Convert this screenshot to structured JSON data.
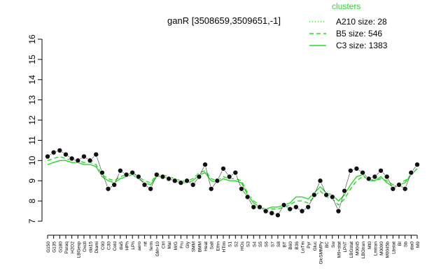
{
  "colors": {
    "series_line": "#22dd22",
    "points_fill": "#111111",
    "axis": "#000000",
    "legend_title": "#22dd22"
  },
  "chart_data": {
    "type": "line",
    "title": "ganR [3508659,3509651,-1]",
    "xlabel": "",
    "ylabel": "",
    "ylim": [
      7,
      16
    ],
    "yticks": [
      7,
      8,
      9,
      10,
      11,
      12,
      13,
      14,
      15,
      16
    ],
    "grid": false,
    "legend": {
      "title": "clusters",
      "position": "top-right",
      "entries": [
        {
          "label": "A210 size: 28",
          "style": "dotted"
        },
        {
          "label": "B5 size: 546",
          "style": "dashed"
        },
        {
          "label": "C3 size: 1383",
          "style": "solid"
        }
      ]
    },
    "tick_labels": [
      "G150",
      "G135",
      "G180",
      "Paraq",
      "H2O2",
      "LBGexp",
      "Oxctl",
      "dia15",
      "Diami",
      "C90",
      "C30",
      "Cold",
      "dia5",
      "HPh",
      "LPh",
      "aero",
      "nit",
      "ferm",
      "GM+10",
      "Ctrl",
      "Mal",
      "M/G",
      "Fru",
      "Gly",
      "SMM",
      "BMM",
      "Heat",
      "Salt",
      "Ethn",
      "HTim",
      "S1",
      "S2",
      "HOs",
      "S3",
      "S4",
      "S5",
      "S6",
      "S7",
      "S8",
      "BT",
      "B60",
      "B36",
      "LoTm",
      "Pyr",
      "Gluc",
      "GlcSMMPy",
      "BC",
      "Sw",
      "M9+stat",
      "LPhT",
      "LBGstat",
      "M0045",
      "LBGtran",
      "Mt0",
      "Lmtran",
      "M0090",
      "M0045b",
      "Lbstat",
      "BI",
      "Sb",
      "dia0",
      "M9"
    ],
    "series": [
      {
        "name": "C3",
        "values": [
          9.8,
          9.9,
          10.0,
          10.0,
          9.9,
          9.9,
          9.8,
          9.8,
          9.7,
          9.2,
          9.0,
          8.9,
          9.1,
          9.2,
          9.3,
          9.1,
          8.9,
          8.8,
          9.2,
          9.2,
          9.1,
          9.0,
          8.9,
          8.9,
          9.0,
          9.3,
          9.4,
          9.0,
          8.9,
          9.1,
          9.0,
          9.0,
          8.9,
          8.3,
          7.9,
          7.7,
          7.6,
          7.7,
          7.7,
          7.8,
          7.9,
          8.2,
          8.2,
          8.1,
          8.4,
          8.7,
          8.4,
          8.3,
          8.0,
          8.3,
          8.8,
          9.2,
          9.3,
          9.0,
          9.0,
          9.2,
          8.9,
          8.7,
          8.8,
          8.9,
          9.3,
          9.6
        ]
      },
      {
        "name": "B5",
        "values": [
          10.0,
          10.1,
          10.2,
          10.1,
          10.0,
          10.0,
          9.9,
          9.9,
          9.8,
          9.3,
          9.1,
          9.0,
          9.2,
          9.3,
          9.4,
          9.2,
          9.0,
          8.9,
          9.3,
          9.3,
          9.2,
          9.1,
          9.0,
          9.0,
          9.1,
          9.4,
          9.5,
          9.1,
          9.0,
          9.2,
          9.1,
          9.1,
          9.0,
          8.4,
          8.0,
          7.8,
          7.6,
          7.6,
          7.6,
          7.7,
          7.8,
          8.0,
          8.0,
          7.9,
          8.2,
          8.5,
          8.2,
          8.1,
          7.8,
          8.1,
          8.6,
          9.0,
          9.2,
          9.1,
          9.0,
          9.1,
          9.0,
          8.8,
          8.9,
          9.0,
          9.3,
          9.6
        ]
      }
    ],
    "points": [
      10.2,
      10.4,
      10.5,
      10.3,
      10.1,
      10.0,
      10.2,
      10.0,
      10.3,
      9.4,
      8.6,
      8.8,
      9.5,
      9.3,
      9.4,
      9.2,
      8.8,
      8.6,
      9.3,
      9.2,
      9.1,
      9.0,
      8.9,
      9.0,
      8.8,
      9.2,
      9.8,
      8.6,
      9.0,
      9.6,
      9.2,
      9.4,
      8.6,
      8.2,
      7.7,
      7.7,
      7.5,
      7.4,
      7.3,
      7.8,
      7.6,
      7.7,
      7.5,
      7.7,
      8.3,
      9.0,
      8.3,
      8.2,
      7.5,
      8.5,
      9.5,
      9.6,
      9.4,
      9.1,
      9.2,
      9.5,
      9.2,
      8.6,
      8.8,
      8.6,
      9.4,
      9.8
    ]
  }
}
